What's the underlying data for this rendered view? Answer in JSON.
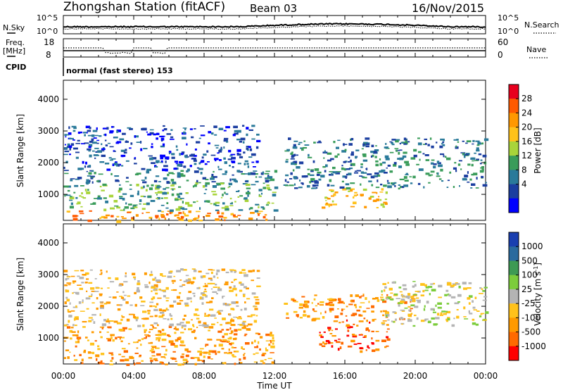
{
  "header": {
    "station": "Zhongshan Station (fitACF)",
    "beam": "Beam 03",
    "date": "16/Nov/2015"
  },
  "noise_panel": {
    "left_label": "N.Sky",
    "left_ticks": [
      "10^5",
      "10^0"
    ],
    "right_label": "N.Search",
    "right_ticks": [
      "10^5",
      "10^0"
    ]
  },
  "freq_panel": {
    "left_label_1": "Freq.",
    "left_label_2": "[MHz]",
    "left_ticks": [
      "18",
      "8"
    ],
    "right_label": "Nave",
    "right_ticks": [
      "60",
      "0"
    ]
  },
  "cpid": {
    "label": "CPID",
    "value": "normal (fast stereo) 153"
  },
  "x_axis": {
    "label": "Time UT",
    "ticks": [
      "00:00",
      "04:00",
      "08:00",
      "12:00",
      "16:00",
      "20:00",
      "00:00"
    ]
  },
  "power_colorbar": {
    "label": "Power [dB]",
    "ticks": [
      "28",
      "24",
      "20",
      "16",
      "12",
      "8",
      "4"
    ],
    "colors": [
      "#e8001e",
      "#ff5a00",
      "#ff9800",
      "#ffc21a",
      "#a9d43a",
      "#3a9c5a",
      "#2a7a9a",
      "#1b3ea0",
      "#0000ff"
    ]
  },
  "velocity_colorbar": {
    "label": "Velocity [m s-1]",
    "label_main": "Velocity [m s",
    "label_sup": "-1",
    "label_end": "]",
    "ticks": [
      "1000",
      "500",
      "100",
      "25",
      "-25",
      "-100",
      "-500",
      "-1000"
    ],
    "colors": [
      "#1a3fb0",
      "#2a6a9e",
      "#3e9a54",
      "#7ccc3c",
      "#b4b4b4",
      "#ffc21a",
      "#ff9a00",
      "#ff6a00",
      "#ff0000"
    ]
  },
  "chart_data": [
    {
      "type": "heatmap",
      "title": "",
      "ylabel": "Slant Range [km]",
      "xlabel": "",
      "x_ticks": [
        "00:00",
        "04:00",
        "08:00",
        "12:00",
        "16:00",
        "20:00",
        "00:00"
      ],
      "y_ticks": [
        1000,
        2000,
        3000,
        4000
      ],
      "ylim": [
        180,
        4600
      ],
      "xlim_hours": [
        0,
        24
      ],
      "colorbar": "Power [dB]",
      "regions": [
        {
          "t": [
            0,
            12
          ],
          "r": [
            180,
            500
          ],
          "value": "24"
        },
        {
          "t": [
            0,
            12
          ],
          "r": [
            500,
            1400
          ],
          "value": "12"
        },
        {
          "t": [
            0,
            12
          ],
          "r": [
            1400,
            1800
          ],
          "value": "8"
        },
        {
          "t": [
            0,
            11
          ],
          "r": [
            1800,
            3200
          ],
          "value": "4"
        },
        {
          "t": [
            14.5,
            18.5
          ],
          "r": [
            600,
            1200
          ],
          "value": "20"
        },
        {
          "t": [
            12.5,
            24
          ],
          "r": [
            1200,
            2800
          ],
          "value": "8"
        }
      ]
    },
    {
      "type": "heatmap",
      "title": "",
      "ylabel": "Slant Range [km]",
      "xlabel": "Time UT",
      "x_ticks": [
        "00:00",
        "04:00",
        "08:00",
        "12:00",
        "16:00",
        "20:00",
        "00:00"
      ],
      "y_ticks": [
        1000,
        2000,
        3000,
        4000
      ],
      "ylim": [
        180,
        4600
      ],
      "xlim_hours": [
        0,
        24
      ],
      "colorbar": "Velocity [m s-1]",
      "regions": [
        {
          "t": [
            0,
            12
          ],
          "r": [
            180,
            1400
          ],
          "value": "-100"
        },
        {
          "t": [
            0,
            11
          ],
          "r": [
            1400,
            3200
          ],
          "value": "-25"
        },
        {
          "t": [
            14.5,
            18.5
          ],
          "r": [
            600,
            1600
          ],
          "value": "-500"
        },
        {
          "t": [
            12.5,
            20
          ],
          "r": [
            1600,
            2400
          ],
          "value": "-100"
        },
        {
          "t": [
            18,
            24
          ],
          "r": [
            1400,
            2800
          ],
          "value": "25"
        }
      ]
    }
  ]
}
